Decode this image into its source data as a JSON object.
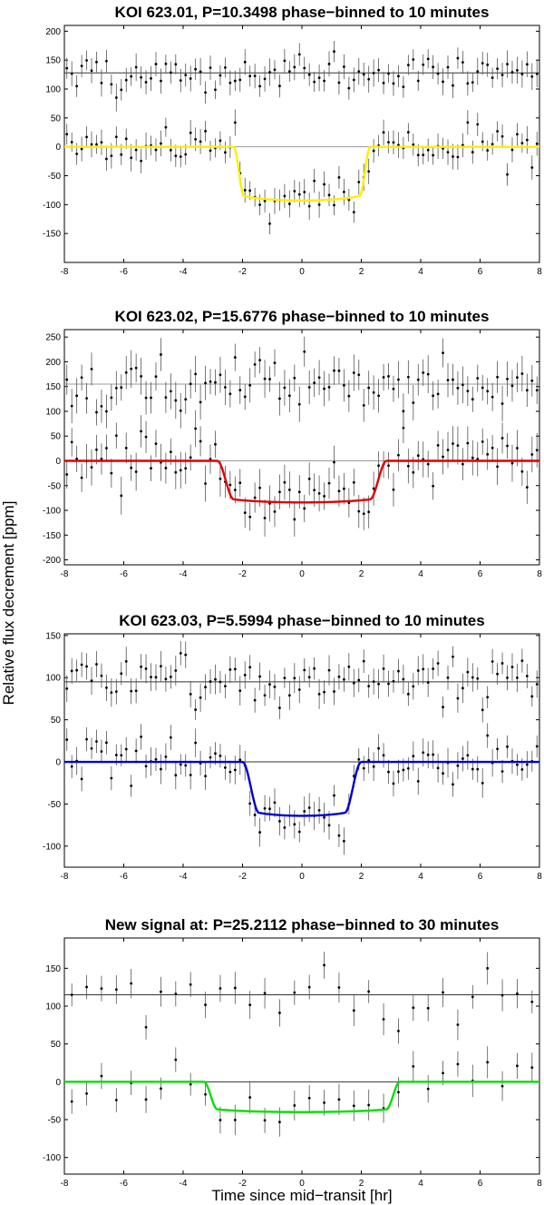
{
  "figure": {
    "ylabel": "Relative flux decrement [ppm]",
    "xlabel": "Time since mid−transit [hr]"
  },
  "chart_data": [
    {
      "type": "scatter",
      "title": "KOI 623.01, P=10.3498 phase−binned to 10 minutes",
      "xlim": [
        -8,
        8
      ],
      "ylim": [
        -200,
        210
      ],
      "xticks": [
        -8,
        -6,
        -4,
        -2,
        0,
        2,
        4,
        6,
        8
      ],
      "yticks": [
        200,
        150,
        100,
        50,
        0,
        -50,
        -100,
        -150
      ],
      "offset": 128,
      "model": {
        "depth": 93,
        "duration": 4.6,
        "ingress": 0.35,
        "color": "#ffee00"
      },
      "n_bins": 96,
      "errorbar": 20,
      "noise": 17,
      "seed": 11
    },
    {
      "type": "scatter",
      "title": "KOI 623.02, P=15.6776 phase−binned to 10 minutes",
      "xlim": [
        -8,
        8
      ],
      "ylim": [
        -210,
        265
      ],
      "xticks": [
        -8,
        -6,
        -4,
        -2,
        0,
        2,
        4,
        6,
        8
      ],
      "yticks": [
        250,
        200,
        150,
        100,
        50,
        0,
        -50,
        -100,
        -150,
        -200
      ],
      "offset": 155,
      "model": {
        "depth": 84,
        "duration": 5.7,
        "ingress": 0.55,
        "color": "#e00000"
      },
      "n_bins": 96,
      "errorbar": 32,
      "noise": 26,
      "seed": 23
    },
    {
      "type": "scatter",
      "title": "KOI 623.03, P=5.5994 phase−binned to 10 minutes",
      "xlim": [
        -8,
        8
      ],
      "ylim": [
        -125,
        152
      ],
      "xticks": [
        -8,
        -6,
        -4,
        -2,
        0,
        2,
        4,
        6,
        8
      ],
      "yticks": [
        150,
        100,
        50,
        0,
        -50,
        -100
      ],
      "offset": 95,
      "model": {
        "depth": 64,
        "duration": 4.0,
        "ingress": 0.55,
        "color": "#0000d0"
      },
      "n_bins": 96,
      "errorbar": 15,
      "noise": 14,
      "seed": 37
    },
    {
      "type": "scatter",
      "title": "New signal at: P=25.2112 phase−binned to 30 minutes",
      "xlim": [
        -8,
        8
      ],
      "ylim": [
        -122,
        190
      ],
      "xticks": [
        -8,
        -6,
        -4,
        -2,
        0,
        2,
        4,
        6,
        8
      ],
      "yticks": [
        150,
        100,
        50,
        0,
        -50,
        -100
      ],
      "offset": 115,
      "model": {
        "depth": 40,
        "duration": 6.6,
        "ingress": 0.45,
        "color": "#00e000"
      },
      "n_bins": 32,
      "errorbar": 18,
      "noise": 18,
      "seed": 53
    }
  ]
}
